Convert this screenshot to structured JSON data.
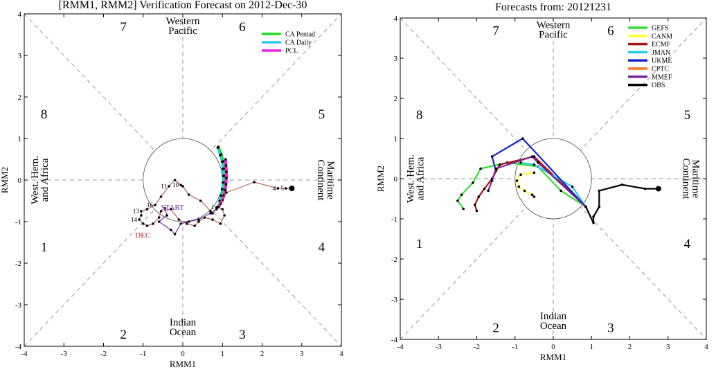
{
  "chart_data": [
    {
      "type": "line",
      "title": "[RMM1, RMM2] Verification Forecast on 2012-Dec-30",
      "xlabel": "RMM1",
      "ylabel": "RMM2",
      "xlim": [
        -4,
        4
      ],
      "ylim": [
        -4,
        4
      ],
      "xticks": [
        "-4",
        "-3",
        "-2",
        "-1",
        "0",
        "1",
        "2",
        "3",
        "4"
      ],
      "yticks": [
        "-4",
        "-3",
        "-2",
        "-1",
        "0",
        "1",
        "2",
        "3",
        "4"
      ],
      "phases": [
        "1",
        "2",
        "3",
        "4",
        "5",
        "6",
        "7",
        "8"
      ],
      "regions": {
        "top": [
          "Western",
          "Pacific"
        ],
        "bottom": [
          "Indian",
          "Ocean"
        ],
        "left": [
          "West. Hem.",
          "and Africa"
        ],
        "right": [
          "Maritime",
          "Continent"
        ]
      },
      "legend_position": "top-right",
      "legend": [
        {
          "label": "CA Pentad",
          "color": "#22dd22"
        },
        {
          "label": "CA Daily",
          "color": "#22ccee"
        },
        {
          "label": "PCL",
          "color": "#ee22dd"
        }
      ],
      "annotations": [
        "START",
        "DEC"
      ],
      "series": [
        {
          "name": "CA Pentad",
          "color": "#22dd22",
          "x": [
            0.9,
            0.97,
            1.02,
            1.04,
            1.04,
            1.03,
            1.0,
            0.97,
            0.94,
            0.9
          ],
          "y": [
            0.8,
            0.62,
            0.45,
            0.28,
            0.1,
            -0.05,
            -0.22,
            -0.38,
            -0.52,
            -0.65
          ]
        },
        {
          "name": "CA Daily",
          "color": "#22ccee",
          "x": [
            0.88,
            0.94,
            0.99,
            1.01,
            1.02,
            1.01,
            0.99,
            0.96,
            0.93,
            0.9
          ],
          "y": [
            0.78,
            0.6,
            0.44,
            0.27,
            0.1,
            -0.06,
            -0.22,
            -0.37,
            -0.5,
            -0.63
          ]
        },
        {
          "name": "PCL",
          "color": "#ee22dd",
          "x": [
            1.08,
            1.09,
            1.1,
            1.1,
            1.09,
            1.07,
            1.04,
            1.0,
            0.95,
            0.9
          ],
          "y": [
            0.5,
            0.35,
            0.2,
            0.05,
            -0.1,
            -0.24,
            -0.37,
            -0.48,
            -0.57,
            -0.65
          ]
        },
        {
          "name": "",
          "color": "#bb6655",
          "labels": true,
          "x": [
            2.75,
            2.6,
            2.4,
            1.8,
            1.1,
            0.85,
            0.75,
            0.7,
            0.45,
            0.15,
            0.0,
            -0.05,
            -0.2,
            -0.35,
            -0.55,
            -0.7,
            -0.9,
            -1.05,
            -1.05,
            -1.1,
            -1.0,
            -0.9,
            -0.75,
            -0.6,
            -0.55,
            -0.3,
            -0.1,
            0.1,
            0.3,
            0.4,
            0.55,
            0.75,
            0.95,
            1.05,
            1.0,
            0.85
          ],
          "y": [
            -0.2,
            -0.2,
            -0.2,
            -0.05,
            -0.3,
            -0.7,
            -0.8,
            -0.75,
            -0.5,
            -0.35,
            -0.15,
            -0.12,
            0.0,
            -0.15,
            -0.4,
            -0.6,
            -0.7,
            -0.75,
            -0.85,
            -0.95,
            -1.05,
            -1.1,
            -1.05,
            -0.9,
            -0.75,
            -0.7,
            -0.95,
            -1.05,
            -1.1,
            -1.0,
            -0.9,
            -0.95,
            -1.05,
            -0.85,
            -0.7,
            -0.65
          ],
          "point_labels": [
            "",
            "5",
            "4",
            "",
            "",
            "",
            "",
            "",
            "",
            "",
            "",
            "10",
            "",
            "11",
            "",
            "16",
            "",
            "13",
            "",
            "14",
            "",
            "",
            "",
            "",
            "",
            "",
            "",
            "",
            "",
            "",
            "",
            "",
            "",
            "",
            "",
            "1"
          ]
        },
        {
          "name": "",
          "color": "#7733bb",
          "x": [
            -0.45,
            -0.4,
            -0.6,
            -0.3,
            -0.2,
            -0.05,
            0.15,
            0.4,
            0.7,
            0.85,
            0.9
          ],
          "y": [
            -0.68,
            -0.85,
            -1.0,
            -1.2,
            -1.3,
            -1.05,
            -1.0,
            -0.95,
            -0.8,
            -0.7,
            -0.65
          ]
        }
      ]
    },
    {
      "type": "line",
      "title": "Forecasts from: 20121231",
      "xlabel": "RMM1",
      "ylabel": "RMM2",
      "xlim": [
        -4,
        4
      ],
      "ylim": [
        -4,
        4
      ],
      "xticks": [
        "-4",
        "-3",
        "-2",
        "-1",
        "0",
        "1",
        "2",
        "3",
        "4"
      ],
      "yticks": [
        "-4",
        "-3",
        "-2",
        "-1",
        "0",
        "1",
        "2",
        "3",
        "4"
      ],
      "phases": [
        "1",
        "2",
        "3",
        "4",
        "5",
        "6",
        "7",
        "8"
      ],
      "regions": {
        "top": [
          "Western",
          "Pacific"
        ],
        "bottom": [
          "Indian",
          "Ocean"
        ],
        "left": [
          "West. Hem.",
          "and Africa"
        ],
        "right": [
          "Maritime",
          "Continent"
        ]
      },
      "legend_position": "top-right",
      "legend": [
        {
          "label": "GEFS",
          "color": "#33dd33"
        },
        {
          "label": "CANM",
          "color": "#ffff33"
        },
        {
          "label": "ECMF",
          "color": "#aa1111"
        },
        {
          "label": "JMAN",
          "color": "#22ccee"
        },
        {
          "label": "UKME",
          "color": "#1122cc"
        },
        {
          "label": "CPTC",
          "color": "#ff7722"
        },
        {
          "label": "MMEF",
          "color": "#772299"
        },
        {
          "label": "OBS",
          "color": "#000000"
        }
      ],
      "series": [
        {
          "name": "GEFS",
          "color": "#33dd33",
          "x": [
            0.85,
            0.2,
            -0.4,
            -1.2,
            -1.9,
            -2.1,
            -2.4,
            -2.5,
            -2.35
          ],
          "y": [
            -0.7,
            -0.3,
            0.3,
            0.4,
            0.25,
            -0.1,
            -0.4,
            -0.55,
            -0.75
          ]
        },
        {
          "name": "CANM",
          "color": "#ffff33",
          "x": [
            -0.5,
            -0.85,
            -0.95,
            -0.9,
            -0.75,
            -0.55,
            -0.5
          ],
          "y": [
            0.15,
            0.1,
            -0.05,
            -0.2,
            -0.3,
            -0.4,
            -0.45
          ]
        },
        {
          "name": "ECMF",
          "color": "#aa1111",
          "x": [
            0.85,
            -0.5,
            -1.4,
            -1.6,
            -1.8,
            -1.95,
            -2.05,
            -2.0
          ],
          "y": [
            -0.7,
            0.55,
            0.35,
            0.0,
            -0.25,
            -0.45,
            -0.65,
            -0.8
          ]
        },
        {
          "name": "JMAN",
          "color": "#22ccee",
          "x": [
            0.85,
            0.5,
            -0.5,
            -0.85
          ],
          "y": [
            -0.7,
            -0.2,
            0.35,
            0.4
          ]
        },
        {
          "name": "UKME",
          "color": "#1122cc",
          "x": [
            0.85,
            -0.8,
            -1.6,
            -1.5
          ],
          "y": [
            -0.7,
            1.0,
            0.55,
            0.2
          ]
        },
        {
          "name": "MMEF",
          "color": "#772299",
          "x": [
            0.85,
            -0.4,
            -0.55,
            -1.5,
            -1.6,
            -1.7
          ],
          "y": [
            -0.7,
            0.4,
            0.55,
            0.25,
            -0.05,
            -0.3
          ]
        },
        {
          "name": "OBS",
          "color": "#000000",
          "x": [
            2.75,
            2.4,
            1.8,
            1.2,
            1.2,
            1.05,
            1.05,
            0.85
          ],
          "y": [
            -0.25,
            -0.25,
            -0.15,
            -0.3,
            -0.7,
            -0.95,
            -1.1,
            -0.7
          ]
        }
      ]
    }
  ]
}
